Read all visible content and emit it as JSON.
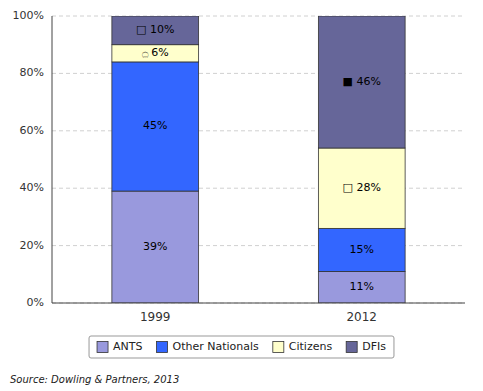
{
  "chart_data": {
    "type": "bar",
    "stacked": true,
    "categories": [
      "1999",
      "2012"
    ],
    "series": [
      {
        "name": "ANTS",
        "color": "#9999dd",
        "values": [
          39,
          11
        ],
        "value_labels": [
          "39%",
          "11%"
        ]
      },
      {
        "name": "Other Nationals",
        "color": "#3366ff",
        "values": [
          45,
          15
        ],
        "value_labels": [
          "45%",
          "15%"
        ]
      },
      {
        "name": "Citizens",
        "color": "#ffffcc",
        "values": [
          6,
          28
        ],
        "value_labels": [
          "۝ 6%",
          "□ 28%"
        ]
      },
      {
        "name": "DFIs",
        "color": "#666699",
        "values": [
          10,
          46
        ],
        "value_labels": [
          "□ 10%",
          "■ 46%"
        ]
      }
    ],
    "ylim": [
      0,
      100
    ],
    "yticks": [
      {
        "value": 0,
        "label": "0%"
      },
      {
        "value": 20,
        "label": "20%"
      },
      {
        "value": 40,
        "label": "40%"
      },
      {
        "value": 60,
        "label": "60%"
      },
      {
        "value": 80,
        "label": "80%"
      },
      {
        "value": 100,
        "label": "100%"
      }
    ],
    "grid": true,
    "legend": "bottom",
    "data_labels": true,
    "annotations": [
      "Source: Dowling & Partners, 2013"
    ]
  }
}
